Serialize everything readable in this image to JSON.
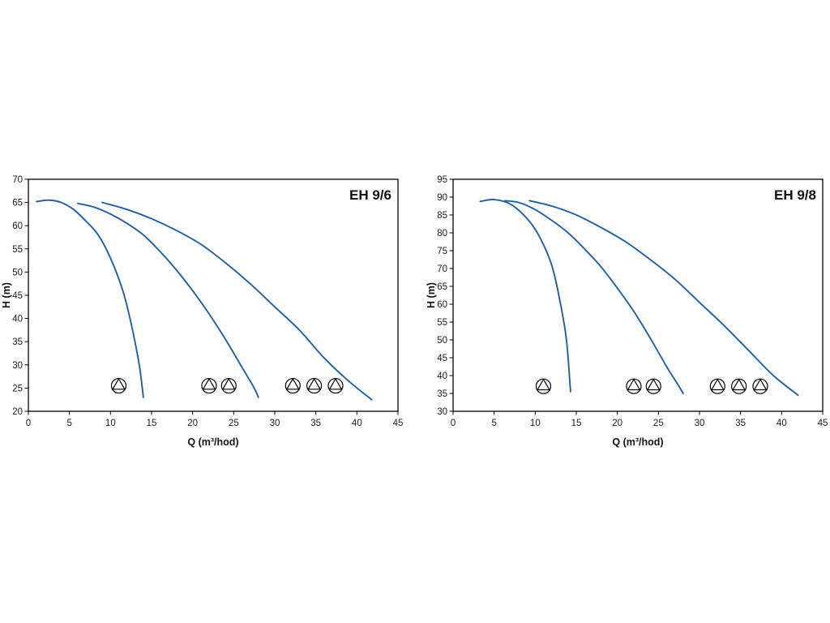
{
  "page": {
    "background": "#ffffff"
  },
  "chart_data": [
    {
      "type": "line",
      "title": "EH 9/6",
      "xlabel": "Q (m³/hod)",
      "ylabel": "H (m)",
      "xlim": [
        0,
        45
      ],
      "ylim": [
        20,
        70
      ],
      "xtick_step": 5,
      "ytick_step": 5,
      "xticks": [
        0,
        5,
        10,
        15,
        20,
        25,
        30,
        35,
        40,
        45
      ],
      "yticks": [
        20,
        25,
        30,
        35,
        40,
        45,
        50,
        55,
        60,
        65,
        70
      ],
      "curve_color": "#1e5fa8",
      "grid": false,
      "series": [
        {
          "name": "1-pump-curve",
          "points": [
            [
              1,
              65.2
            ],
            [
              2.5,
              65.5
            ],
            [
              4,
              65
            ],
            [
              5.5,
              63.5
            ],
            [
              7,
              61
            ],
            [
              8.5,
              58
            ],
            [
              10,
              53
            ],
            [
              11.5,
              46
            ],
            [
              12.5,
              39
            ],
            [
              13.5,
              30
            ],
            [
              14,
              23
            ]
          ]
        },
        {
          "name": "2-pump-curve",
          "points": [
            [
              6,
              64.8
            ],
            [
              8,
              64
            ],
            [
              10,
              62.5
            ],
            [
              12,
              60.5
            ],
            [
              14,
              58
            ],
            [
              16,
              54.5
            ],
            [
              18,
              50.5
            ],
            [
              20,
              46
            ],
            [
              22,
              41
            ],
            [
              24,
              35.5
            ],
            [
              26,
              29.5
            ],
            [
              27.5,
              25
            ],
            [
              28,
              23
            ]
          ]
        },
        {
          "name": "3-pump-curve",
          "points": [
            [
              9,
              65
            ],
            [
              12,
              63.5
            ],
            [
              15,
              61.5
            ],
            [
              18,
              59
            ],
            [
              21,
              56
            ],
            [
              24,
              52
            ],
            [
              27,
              47.5
            ],
            [
              30,
              42.5
            ],
            [
              33,
              37.5
            ],
            [
              36,
              31.5
            ],
            [
              39,
              26.5
            ],
            [
              41.8,
              22.5
            ]
          ]
        }
      ],
      "pump_markers": {
        "y": 25.5,
        "groups": [
          [
            11
          ],
          [
            22,
            24.4
          ],
          [
            32.2,
            34.8,
            37.4
          ]
        ]
      }
    },
    {
      "type": "line",
      "title": "EH 9/8",
      "xlabel": "Q (m³/hod)",
      "ylabel": "H (m)",
      "xlim": [
        0,
        45
      ],
      "ylim": [
        30,
        95
      ],
      "xtick_step": 5,
      "ytick_step": 5,
      "xticks": [
        0,
        5,
        10,
        15,
        20,
        25,
        30,
        35,
        40,
        45
      ],
      "yticks": [
        30,
        35,
        40,
        45,
        50,
        55,
        60,
        65,
        70,
        75,
        80,
        85,
        90,
        95
      ],
      "curve_color": "#1e5fa8",
      "grid": false,
      "series": [
        {
          "name": "1-pump-curve",
          "points": [
            [
              3.3,
              88.8
            ],
            [
              5,
              89.3
            ],
            [
              7,
              88
            ],
            [
              9,
              84
            ],
            [
              10.5,
              79
            ],
            [
              12,
              71
            ],
            [
              13,
              61
            ],
            [
              13.8,
              50
            ],
            [
              14.3,
              35.5
            ]
          ]
        },
        {
          "name": "2-pump-curve",
          "points": [
            [
              6.3,
              89
            ],
            [
              8,
              88.5
            ],
            [
              10,
              86.5
            ],
            [
              12,
              83.5
            ],
            [
              14,
              80
            ],
            [
              16,
              75.5
            ],
            [
              18,
              70.5
            ],
            [
              20,
              64.5
            ],
            [
              22,
              58
            ],
            [
              24,
              50.5
            ],
            [
              26,
              42.5
            ],
            [
              27.5,
              37
            ],
            [
              28,
              35
            ]
          ]
        },
        {
          "name": "3-pump-curve",
          "points": [
            [
              9.3,
              89
            ],
            [
              12,
              87.5
            ],
            [
              15,
              85
            ],
            [
              18,
              81.5
            ],
            [
              21,
              77.5
            ],
            [
              24,
              72.5
            ],
            [
              27,
              67
            ],
            [
              30,
              60.5
            ],
            [
              33,
              54
            ],
            [
              36,
              47
            ],
            [
              39,
              40
            ],
            [
              42,
              34.5
            ]
          ]
        }
      ],
      "pump_markers": {
        "y": 37,
        "groups": [
          [
            11
          ],
          [
            22,
            24.4
          ],
          [
            32.2,
            34.8,
            37.4
          ]
        ]
      }
    }
  ]
}
